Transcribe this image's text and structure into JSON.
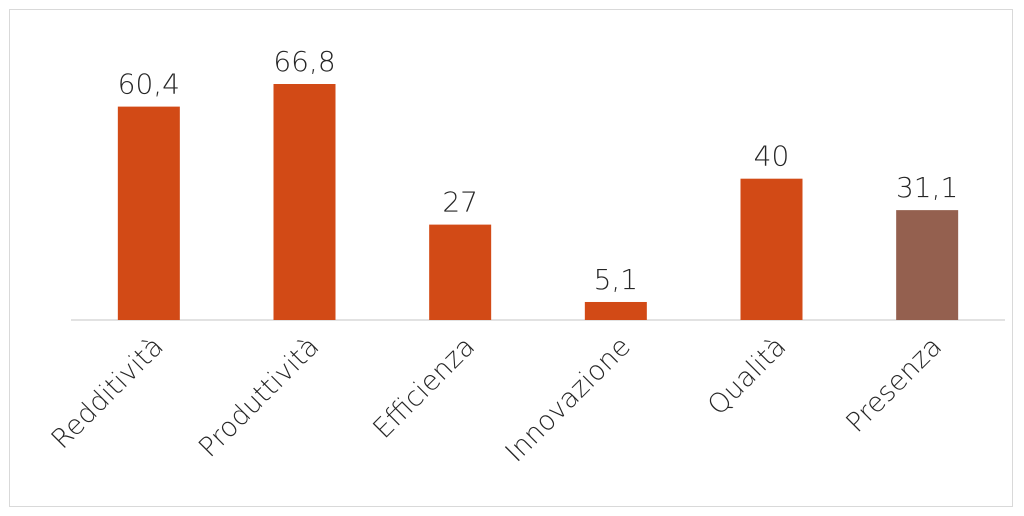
{
  "chart_data": {
    "type": "bar",
    "categories": [
      "Redditività",
      "Produttività",
      "Efficienza",
      "Innovazione",
      "Qualità",
      "Presenza"
    ],
    "values": [
      60.4,
      66.8,
      27,
      5.1,
      40,
      31.1
    ],
    "value_labels": [
      "60,4",
      "66,8",
      "27",
      "5,1",
      "40",
      "31,1"
    ],
    "colors": [
      "#d24a16",
      "#d24a16",
      "#d24a16",
      "#d24a16",
      "#d24a16",
      "#94604f"
    ],
    "ylim": [
      0,
      66.8
    ],
    "grid": false,
    "legend": "none"
  }
}
